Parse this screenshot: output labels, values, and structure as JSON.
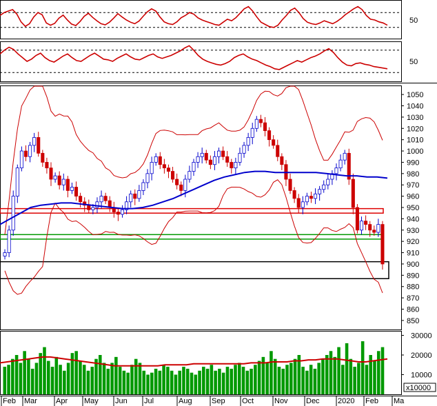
{
  "chart_data": {
    "type": "candlestick",
    "x_labels": [
      "Feb",
      "Mar",
      "Apr",
      "May",
      "Jun",
      "Jul",
      "Aug",
      "Sep",
      "Oct",
      "Nov",
      "Dec",
      "2020",
      "Feb",
      "Ma"
    ],
    "panels": {
      "rsi": {
        "ticks": [
          50
        ],
        "guides": [
          30,
          70
        ],
        "line_color": "#cc0000",
        "values": [
          62,
          70,
          74,
          78,
          66,
          45,
          33,
          40,
          58,
          70,
          64,
          42,
          36,
          41,
          55,
          63,
          50,
          39,
          35,
          46,
          60,
          68,
          57,
          48,
          40,
          37,
          44,
          55,
          67,
          58,
          50,
          44,
          40,
          47,
          60,
          72,
          80,
          74,
          58,
          45,
          40,
          38,
          45,
          56,
          62,
          70,
          66,
          56,
          50,
          46,
          42,
          38,
          36,
          44,
          52,
          48,
          56,
          68,
          80,
          86,
          74,
          58,
          44,
          38,
          32,
          30,
          36,
          50,
          62,
          76,
          82,
          70,
          54,
          44,
          40,
          38,
          42,
          48,
          44,
          40,
          46,
          54,
          64,
          72,
          80,
          86,
          78,
          62,
          52,
          50,
          45,
          42,
          36
        ]
      },
      "stoch": {
        "ticks": [
          50
        ],
        "guides": [
          20,
          80
        ],
        "line_color": "#cc0000",
        "values": [
          70,
          80,
          88,
          82,
          70,
          60,
          50,
          56,
          66,
          72,
          60,
          52,
          48,
          56,
          64,
          70,
          60,
          52,
          50,
          58,
          66,
          72,
          64,
          56,
          54,
          50,
          58,
          64,
          70,
          62,
          56,
          54,
          60,
          66,
          70,
          62,
          58,
          62,
          66,
          72,
          78,
          86,
          92,
          80,
          66,
          56,
          50,
          46,
          42,
          40,
          44,
          50,
          60,
          66,
          70,
          62,
          56,
          52,
          46,
          40,
          36,
          30,
          28,
          34,
          40,
          46,
          52,
          48,
          54,
          60,
          64,
          70,
          78,
          84,
          74,
          60,
          48,
          40,
          38,
          44,
          46,
          42,
          40,
          36,
          34,
          32,
          30
        ]
      },
      "price": {
        "ticks": [
          850,
          860,
          870,
          880,
          890,
          900,
          910,
          920,
          930,
          940,
          950,
          960,
          970,
          980,
          990,
          1000,
          1010,
          1020,
          1030,
          1040,
          1050
        ],
        "ylim": [
          842,
          1058
        ],
        "close": [
          910,
          930,
          960,
          985,
          1000,
          995,
          1005,
          1012,
          998,
          990,
          985,
          975,
          978,
          970,
          975,
          965,
          968,
          960,
          955,
          952,
          948,
          950,
          955,
          960,
          956,
          950,
          946,
          944,
          948,
          955,
          962,
          958,
          965,
          972,
          980,
          990,
          995,
          988,
          985,
          982,
          975,
          970,
          965,
          975,
          982,
          990,
          995,
          998,
          992,
          988,
          995,
          1000,
          995,
          990,
          985,
          990,
          998,
          1005,
          1012,
          1020,
          1028,
          1025,
          1018,
          1010,
          1005,
          995,
          988,
          975,
          965,
          958,
          950,
          955,
          960,
          958,
          962,
          966,
          970,
          975,
          980,
          985,
          992,
          998,
          975,
          950,
          930,
          938,
          935,
          930,
          928,
          935,
          900
        ],
        "bollinger_color": "#cc0000",
        "ma200_color": "#0000cc",
        "ma200": [
          935,
          940,
          945,
          950,
          952,
          953,
          954,
          954,
          953,
          952,
          951,
          950,
          949,
          949,
          950,
          952,
          955,
          958,
          962,
          966,
          970,
          974,
          977,
          979,
          981,
          982,
          982,
          981,
          981,
          981,
          981,
          981,
          980,
          979,
          978,
          978,
          977,
          977,
          976
        ],
        "support_red": [
          945,
          949
        ],
        "support_green": [
          922,
          926
        ],
        "box_black": [
          887,
          902
        ]
      },
      "volume": {
        "ticks": [
          "30000",
          "20000",
          "10000"
        ],
        "multiplier": "x10000",
        "bar_color": "#009900",
        "ma_color": "#cc0000",
        "values": [
          14,
          15,
          18,
          20,
          16,
          22,
          18,
          13,
          16,
          21,
          24,
          17,
          14,
          19,
          15,
          12,
          16,
          21,
          22,
          17,
          15,
          12,
          14,
          18,
          20,
          16,
          13,
          16,
          19,
          14,
          12,
          11,
          15,
          18,
          16,
          12,
          10,
          11,
          13,
          12,
          15,
          14,
          12,
          10,
          12,
          14,
          13,
          11,
          10,
          12,
          14,
          13,
          15,
          12,
          13,
          11,
          14,
          13,
          15,
          16,
          14,
          12,
          13,
          15,
          17,
          19,
          16,
          22,
          18,
          14,
          13,
          15,
          16,
          18,
          20,
          14,
          12,
          15,
          13,
          16,
          18,
          20,
          22,
          19,
          24,
          15,
          26,
          18,
          14,
          16,
          27,
          15,
          20,
          17,
          22,
          24
        ],
        "ma": [
          16,
          16.5,
          17,
          17.5,
          18,
          18.5,
          19,
          19,
          18.5,
          18,
          17.5,
          17,
          16.5,
          16,
          15.5,
          15,
          14.5,
          14.5,
          14.5,
          14.5,
          14.5,
          14.5,
          14.5,
          15,
          15,
          15,
          15,
          15.5,
          15.5,
          15.5,
          15.5,
          15.5,
          15.5,
          15.5,
          15.5,
          16,
          16,
          16,
          16.5,
          16.5,
          16.5,
          17,
          17,
          17.5,
          17.5,
          18,
          18,
          18,
          17.5,
          17,
          16.5,
          16.5,
          17,
          17.5,
          18
        ]
      }
    }
  }
}
